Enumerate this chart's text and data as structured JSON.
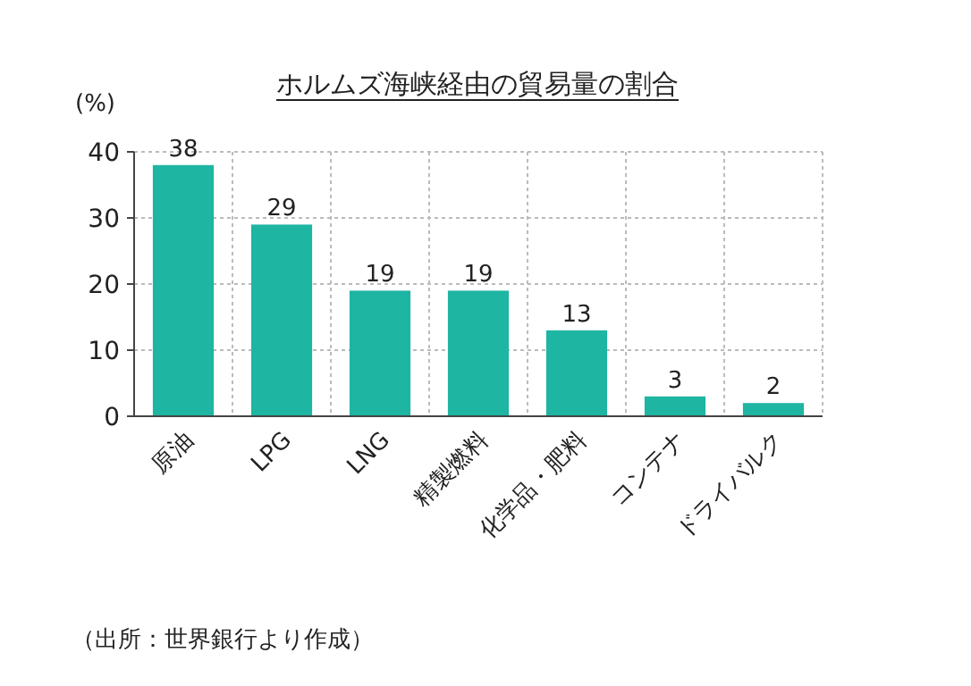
{
  "chart_data": {
    "type": "bar",
    "title": "ホルムズ海峡経由の貿易量の割合",
    "ylabel": "(%)",
    "categories": [
      "原油",
      "LPG",
      "LNG",
      "精製燃料",
      "化学品・肥料",
      "コンテナ",
      "ドライバルク"
    ],
    "values": [
      38,
      29,
      19,
      19,
      13,
      3,
      2
    ],
    "color": "#1fb5a3",
    "ylim": [
      0,
      40
    ],
    "yticks": [
      0,
      10,
      20,
      30,
      40
    ],
    "grid": true,
    "data_labels": true,
    "annotations": [
      "（出所：世界銀行より作成）"
    ]
  }
}
